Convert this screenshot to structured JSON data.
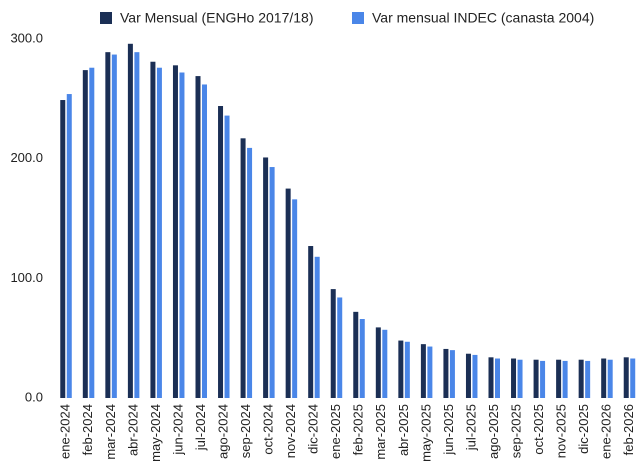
{
  "chart_data": {
    "type": "bar",
    "categories": [
      "ene-2024",
      "feb-2024",
      "mar-2024",
      "abr-2024",
      "may-2024",
      "jun-2024",
      "jul-2024",
      "ago-2024",
      "sep-2024",
      "oct-2024",
      "nov-2024",
      "dic-2024",
      "ene-2025",
      "feb-2025",
      "mar-2025",
      "abr-2025",
      "may-2025",
      "jun-2025",
      "jul-2025",
      "ago-2025",
      "sep-2025",
      "oct-2025",
      "nov-2025",
      "dic-2025",
      "ene-2026",
      "feb-2026"
    ],
    "series": [
      {
        "name": "Var Mensual (ENGHo 2017/18)",
        "color": "#1b2f55",
        "values": [
          249,
          274,
          289,
          296,
          281,
          278,
          269,
          244,
          217,
          201,
          175,
          127,
          91,
          72,
          59,
          48,
          45,
          41,
          37,
          34,
          33,
          32,
          32,
          32,
          33,
          34
        ]
      },
      {
        "name": "Var mensual INDEC (canasta 2004)",
        "color": "#4a86e8",
        "values": [
          254,
          276,
          287,
          289,
          276,
          272,
          262,
          236,
          209,
          193,
          166,
          118,
          84,
          66,
          57,
          47,
          43,
          40,
          36,
          33,
          32,
          31,
          31,
          31,
          32,
          33
        ]
      }
    ],
    "ylim": [
      0,
      300
    ],
    "yticks": [
      {
        "value": 0,
        "label": "0.0"
      },
      {
        "value": 100,
        "label": "100.0"
      },
      {
        "value": 200,
        "label": "200.0"
      },
      {
        "value": 300,
        "label": "300.0"
      }
    ],
    "grid": false,
    "legend": "top"
  }
}
